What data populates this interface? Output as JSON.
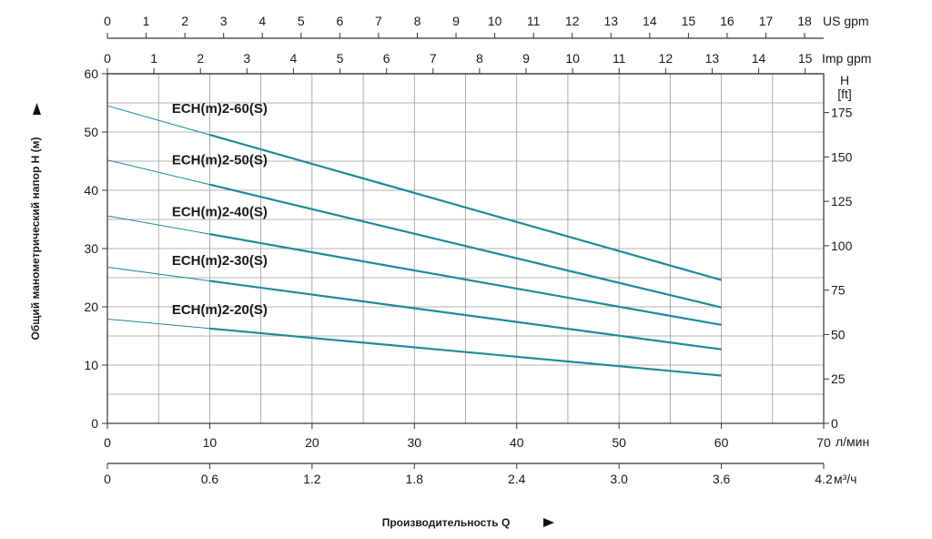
{
  "chart_data": {
    "type": "line",
    "x_unit": "л/мин",
    "xlim": [
      0,
      70
    ],
    "ylim": [
      0,
      60
    ],
    "y_ticks": [
      "0",
      "10",
      "20",
      "30",
      "40",
      "50",
      "60"
    ],
    "x_ticks": [
      "0",
      "10",
      "20",
      "30",
      "40",
      "50",
      "60",
      "70"
    ],
    "xlabel": "Производительность Q",
    "ylabel": "Общий манометрический напор Н (м)",
    "series": [
      {
        "name": "ECH(m)2-60(S)",
        "x": [
          0,
          60
        ],
        "y": [
          54.5,
          24.6
        ],
        "color": "#1f8a99"
      },
      {
        "name": "ECH(m)2-50(S)",
        "x": [
          0,
          60
        ],
        "y": [
          45.2,
          19.9
        ],
        "color": "#1f8a99"
      },
      {
        "name": "ECH(m)2-40(S)",
        "x": [
          0,
          60
        ],
        "y": [
          35.6,
          16.9
        ],
        "color": "#1f8a99"
      },
      {
        "name": "ECH(m)2-30(S)",
        "x": [
          0,
          60
        ],
        "y": [
          26.8,
          12.7
        ],
        "color": "#1f8a99"
      },
      {
        "name": "ECH(m)2-20(S)",
        "x": [
          0,
          60
        ],
        "y": [
          17.9,
          8.2
        ],
        "color": "#1f8a99"
      }
    ],
    "secondary_axes": {
      "us_gpm": {
        "label": "US gpm",
        "ticks": [
          "0",
          "1",
          "2",
          "3",
          "4",
          "5",
          "6",
          "7",
          "8",
          "9",
          "10",
          "11",
          "12",
          "13",
          "14",
          "15",
          "16",
          "17",
          "18"
        ],
        "per_lpm": 0.264172
      },
      "imp_gpm": {
        "label": "Imp gpm",
        "ticks": [
          "0",
          "1",
          "2",
          "3",
          "4",
          "5",
          "6",
          "7",
          "8",
          "9",
          "10",
          "11",
          "12",
          "13",
          "14",
          "15"
        ],
        "per_lpm": 0.219969
      },
      "m3h": {
        "label": "м³/ч",
        "ticks": [
          "0",
          "0.6",
          "1.2",
          "1.8",
          "2.4",
          "3.0",
          "3.6",
          "4.2"
        ],
        "per_lpm": 0.06
      },
      "ft": {
        "label_top": "H",
        "label_bottom": "[ft]",
        "ticks": [
          "0",
          "25",
          "50",
          "75",
          "100",
          "125",
          "150",
          "175"
        ],
        "per_m": 3.28084
      }
    }
  }
}
